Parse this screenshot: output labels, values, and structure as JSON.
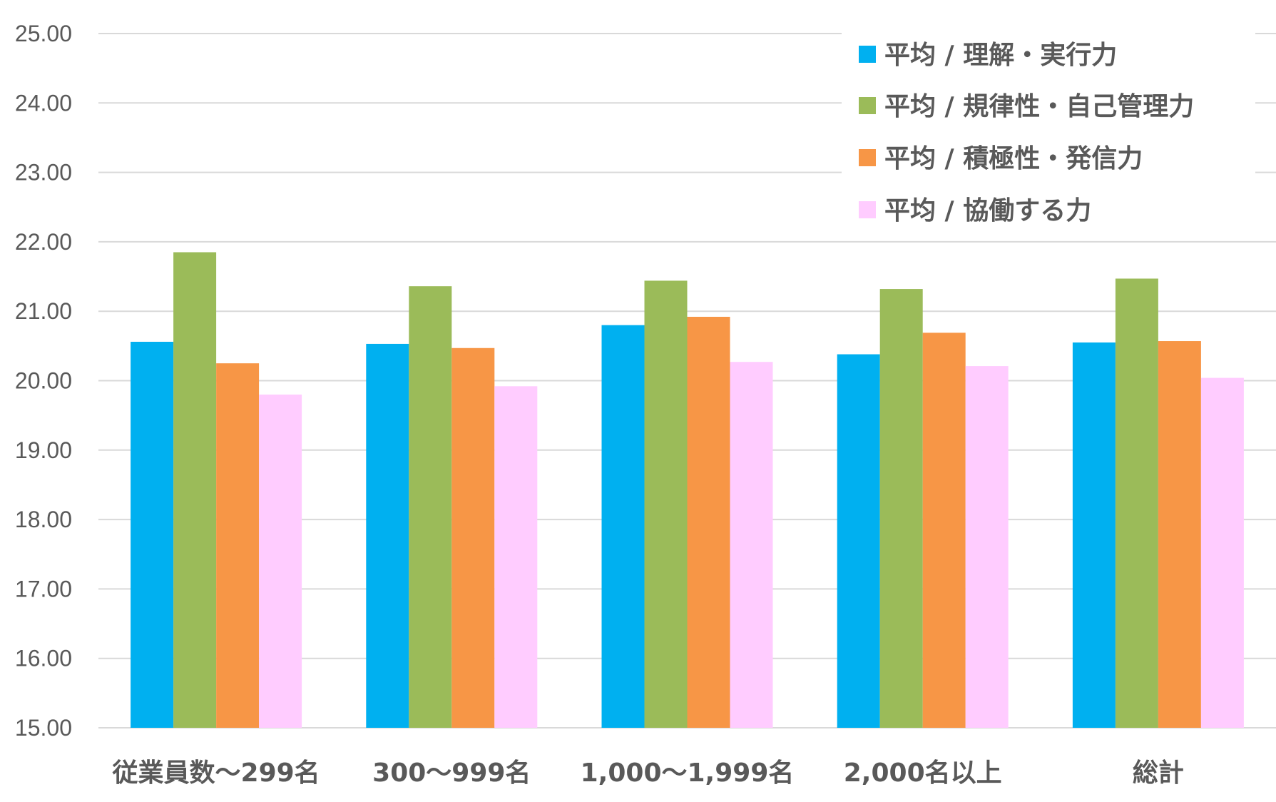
{
  "chart_data": {
    "type": "bar",
    "title": "",
    "xlabel": "",
    "ylabel": "",
    "ylim": [
      15,
      25
    ],
    "yticks": [
      "15.00",
      "16.00",
      "17.00",
      "18.00",
      "19.00",
      "20.00",
      "21.00",
      "22.00",
      "23.00",
      "24.00",
      "25.00"
    ],
    "grid": true,
    "legend_position": "top-right",
    "categories": [
      "従業員数～299名",
      "300～999名",
      "1,000～1,999名",
      "2,000名以上",
      "総計"
    ],
    "series": [
      {
        "name": "平均 / 理解・実行力",
        "color": "#00B0F0",
        "values": [
          20.56,
          20.53,
          20.8,
          20.38,
          20.55
        ]
      },
      {
        "name": "平均 / 規律性・自己管理力",
        "color": "#9BBB59",
        "values": [
          21.85,
          21.36,
          21.44,
          21.32,
          21.47
        ]
      },
      {
        "name": "平均 / 積極性・発信力",
        "color": "#F79646",
        "values": [
          20.25,
          20.47,
          20.92,
          20.69,
          20.57
        ]
      },
      {
        "name": "平均 / 協働する力",
        "color": "#FFCCFF",
        "values": [
          19.8,
          19.92,
          20.27,
          20.21,
          20.04
        ]
      }
    ]
  }
}
